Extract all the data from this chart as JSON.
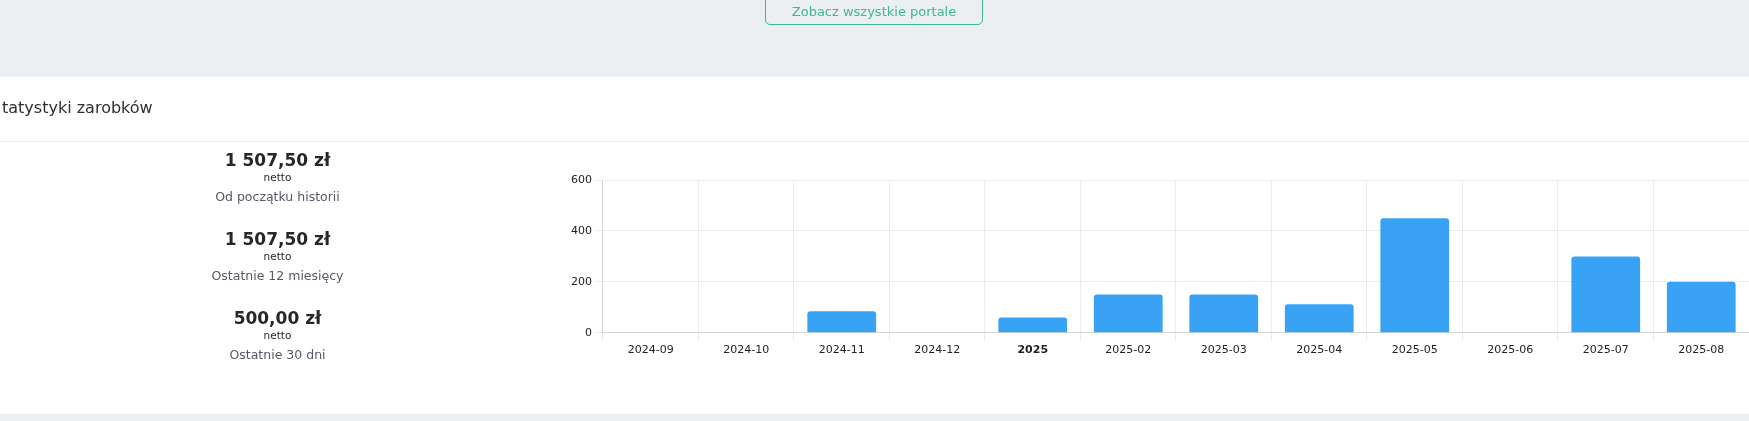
{
  "chart_data": {
    "type": "bar",
    "title": "tatystyki zarobków",
    "categories": [
      "2024-09",
      "2024-10",
      "2024-11",
      "2024-12",
      "2025",
      "2025-02",
      "2025-03",
      "2025-04",
      "2025-05",
      "2025-06",
      "2025-07",
      "2025-08"
    ],
    "values": [
      0,
      0,
      85,
      0,
      60,
      150,
      150,
      112,
      450,
      0,
      300,
      200
    ],
    "color": "#38a3f5",
    "ylim": [
      0,
      600
    ],
    "yticks": [
      0,
      200,
      400,
      600
    ],
    "grid": true,
    "legend": false,
    "annotations": [
      "Zobacz wszystkie portale",
      "1 507,50 zł",
      "netto",
      "Od początku historii",
      "1 507,50 zł",
      "netto",
      "Ostatnie 12 miesięcy",
      "500,00 zł",
      "netto",
      "Ostatnie 30 dni"
    ]
  }
}
